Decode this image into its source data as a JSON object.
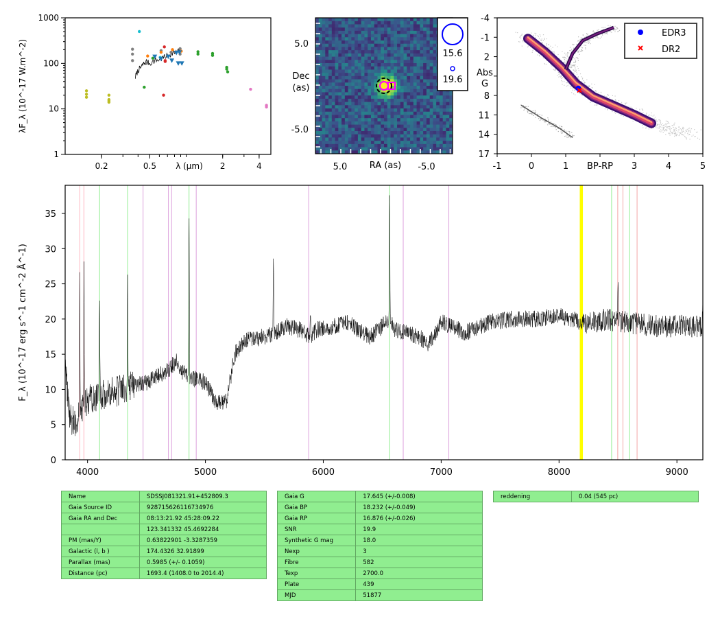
{
  "chart_data": [
    {
      "type": "scatter",
      "xlabel": "λ (μm)",
      "ylabel": "λF_λ (10^-17 W.m^-2)",
      "xscale": "log",
      "yscale": "log",
      "xlim": [
        0.1,
        5.0
      ],
      "ylim": [
        1,
        1000
      ],
      "xticks": [
        "0.2",
        "0.5",
        "2",
        "4"
      ],
      "yticks": [
        "1",
        "10",
        "100",
        "1000"
      ],
      "series": [
        {
          "color": "#bcbd22",
          "marker": "dot",
          "x": [
            0.15,
            0.15,
            0.15,
            0.23,
            0.23,
            0.23,
            0.23
          ],
          "y": [
            25,
            21,
            18,
            20,
            16,
            15,
            14
          ]
        },
        {
          "color": "#7f7f7f",
          "marker": "dot",
          "x": [
            0.36,
            0.36,
            0.36,
            0.47,
            0.62,
            0.75,
            0.89,
            0.89
          ],
          "y": [
            205,
            160,
            115,
            100,
            190,
            175,
            210,
            160
          ]
        },
        {
          "color": "#ff7f0e",
          "marker": "dot",
          "x": [
            0.48,
            0.62,
            0.77,
            0.91
          ],
          "y": [
            145,
            175,
            200,
            185
          ]
        },
        {
          "color": "#2ca02c",
          "marker": "dot",
          "x": [
            0.53,
            0.45,
            1.25,
            1.25,
            1.65,
            1.65,
            2.16,
            2.16,
            2.2
          ],
          "y": [
            130,
            30,
            180,
            160,
            165,
            150,
            82,
            75,
            65
          ]
        },
        {
          "color": "#d62728",
          "marker": "dot",
          "x": [
            0.66,
            0.67,
            0.67,
            0.65
          ],
          "y": [
            230,
            115,
            110,
            20
          ]
        },
        {
          "color": "#17becf",
          "marker": "dot",
          "x": [
            0.41,
            0.61
          ],
          "y": [
            500,
            135
          ]
        },
        {
          "color": "#1f77b4",
          "marker": "triangle-down",
          "x": [
            0.55,
            0.62,
            0.71,
            0.76,
            0.83,
            0.86,
            0.88,
            0.92
          ],
          "y": [
            140,
            125,
            140,
            115,
            170,
            100,
            175,
            100
          ]
        },
        {
          "color": "#e377c2",
          "marker": "dot",
          "x": [
            3.4,
            4.6,
            4.6
          ],
          "y": [
            27,
            12,
            11
          ]
        }
      ],
      "spectrum_line": {
        "color": "#000000",
        "x": [
          0.38,
          0.4,
          0.42,
          0.44,
          0.47,
          0.5,
          0.55,
          0.6,
          0.65,
          0.7,
          0.75,
          0.8,
          0.85,
          0.9
        ],
        "y": [
          50,
          70,
          80,
          95,
          110,
          100,
          115,
          120,
          135,
          150,
          165,
          170,
          180,
          190
        ]
      }
    },
    {
      "type": "heatmap",
      "title": "",
      "xlabel": "RA (as)",
      "ylabel": "Dec\n(as)",
      "xlim": [
        8.0,
        -8.0
      ],
      "ylim": [
        -8.0,
        8.0
      ],
      "xticks": [
        "5.0",
        "-5.0"
      ],
      "yticks": [
        "5.0",
        "-5.0"
      ],
      "colormap": "viridis",
      "source": {
        "x": 0.0,
        "y": 0.0
      },
      "legend": [
        "15.6",
        "19.6"
      ],
      "marker_colors": {
        "circle": "#ff00ff",
        "square": "#ff00ff",
        "dashed": "#000000"
      }
    },
    {
      "type": "scatter",
      "xlabel": "BP-RP",
      "ylabel": "Abs\nG",
      "xlim": [
        -1,
        5
      ],
      "ylim": [
        17,
        -4
      ],
      "xticks": [
        "-1",
        "0",
        "1",
        "3",
        "4",
        "5"
      ],
      "yticks": [
        "-4",
        "-1",
        "2",
        "5",
        "8",
        "11",
        "14",
        "17"
      ],
      "colormap": "inferno",
      "legend": [
        {
          "label": "EDR3",
          "marker": "dot",
          "color": "#0000ff",
          "x": 1.37,
          "y": 6.9
        },
        {
          "label": "DR2",
          "marker": "x",
          "color": "#ff0000",
          "x": 1.4,
          "y": 7.2
        }
      ],
      "legend_position": "top-right"
    },
    {
      "type": "line",
      "xlabel": "",
      "ylabel": "F_λ (10^-17 erg s^-1 cm^-2 Å^-1)",
      "xlim": [
        3810,
        9220
      ],
      "ylim": [
        0,
        39
      ],
      "xticks": [
        "4000",
        "5000",
        "6000",
        "7000",
        "8000",
        "9000"
      ],
      "yticks": [
        "0",
        "5",
        "10",
        "15",
        "20",
        "25",
        "30",
        "35"
      ],
      "continuum": {
        "x": [
          3810,
          3850,
          3900,
          3950,
          4000,
          4100,
          4200,
          4300,
          4400,
          4500,
          4600,
          4700,
          4750,
          4800,
          4900,
          5000,
          5100,
          5180,
          5250,
          5350,
          5500,
          5600,
          5700,
          5800,
          5880,
          5950,
          6100,
          6200,
          6300,
          6400,
          6500,
          6560,
          6600,
          6700,
          6800,
          6900,
          7000,
          7100,
          7200,
          7400,
          7600,
          7800,
          8000,
          8100,
          8200,
          8300,
          8400,
          8600,
          8800,
          9000,
          9220
        ],
        "y": [
          13,
          6,
          5,
          7,
          8.5,
          9,
          9.5,
          10,
          10.5,
          11,
          12,
          13,
          14,
          12.5,
          11.5,
          11,
          8,
          8.5,
          15,
          17,
          17.5,
          18,
          19,
          18.5,
          17.5,
          18.5,
          19,
          19.5,
          18.5,
          17.5,
          19,
          20,
          18.5,
          18,
          17.5,
          16.5,
          19.5,
          19,
          18,
          19.5,
          20,
          20,
          20.5,
          20,
          19.5,
          19.5,
          20,
          19.5,
          19,
          19,
          19
        ]
      },
      "emission_lines": [
        {
          "x": 3934,
          "y": 26
        },
        {
          "x": 3970,
          "y": 27
        },
        {
          "x": 4102,
          "y": 25
        },
        {
          "x": 4340,
          "y": 27
        },
        {
          "x": 4861,
          "y": 36
        },
        {
          "x": 5577,
          "y": 29
        },
        {
          "x": 5890,
          "y": 22
        },
        {
          "x": 6563,
          "y": 39
        },
        {
          "x": 8500,
          "y": 26
        },
        {
          "x": 9220,
          "y": 25
        }
      ],
      "line_markers": [
        {
          "x": 3934,
          "color": "#ffb6c1"
        },
        {
          "x": 3969,
          "color": "#ffb6c1"
        },
        {
          "x": 4102,
          "color": "#90ee90"
        },
        {
          "x": 4340,
          "color": "#90ee90"
        },
        {
          "x": 4471,
          "color": "#dda0dd"
        },
        {
          "x": 4686,
          "color": "#dda0dd"
        },
        {
          "x": 4713,
          "color": "#dda0dd"
        },
        {
          "x": 4861,
          "color": "#90ee90"
        },
        {
          "x": 4922,
          "color": "#dda0dd"
        },
        {
          "x": 5876,
          "color": "#dda0dd"
        },
        {
          "x": 6563,
          "color": "#90ee90"
        },
        {
          "x": 6678,
          "color": "#dda0dd"
        },
        {
          "x": 7065,
          "color": "#dda0dd"
        },
        {
          "x": 8183,
          "color": "#ffff00"
        },
        {
          "x": 8195,
          "color": "#ffff00"
        },
        {
          "x": 8446,
          "color": "#90ee90"
        },
        {
          "x": 8498,
          "color": "#f4a6a6"
        },
        {
          "x": 8542,
          "color": "#f4a6a6"
        },
        {
          "x": 8598,
          "color": "#90ee90"
        },
        {
          "x": 8662,
          "color": "#f4a6a6"
        }
      ]
    }
  ],
  "tables": {
    "t1": [
      [
        "Name",
        "SDSSJ081321.91+452809.3"
      ],
      [
        "Gaia Source ID",
        "928715626116734976"
      ],
      [
        "Gaia RA and Dec",
        "08:13:21.92     45:28:09.22"
      ],
      [
        "",
        "123.341332     45.4692284"
      ],
      [
        "PM (mas/Y)",
        "0.63822901     -3.3287359"
      ],
      [
        "Galactic (l, b )",
        "174.4326     32.91899"
      ],
      [
        "Parallax (mas)",
        "0.5985 (+/- 0.1059)"
      ],
      [
        "Distance (pc)",
        "1693.4 (1408.0 to 2014.4)"
      ]
    ],
    "t2": [
      [
        "Gaia G",
        "17.645 (+/-0.008)"
      ],
      [
        "Gaia BP",
        "18.232 (+/-0.049)"
      ],
      [
        "Gaia RP",
        "16.876 (+/-0.026)"
      ],
      [
        "SNR",
        "19.9"
      ],
      [
        "Synthetic G mag",
        "18.0"
      ],
      [
        "Nexp",
        "3"
      ],
      [
        "Fibre",
        "582"
      ],
      [
        "Texp",
        "2700.0"
      ],
      [
        "Plate",
        "439"
      ],
      [
        "MJD",
        "51877"
      ]
    ],
    "t3": [
      [
        "reddening",
        "0.04 (545 pc)"
      ]
    ]
  }
}
